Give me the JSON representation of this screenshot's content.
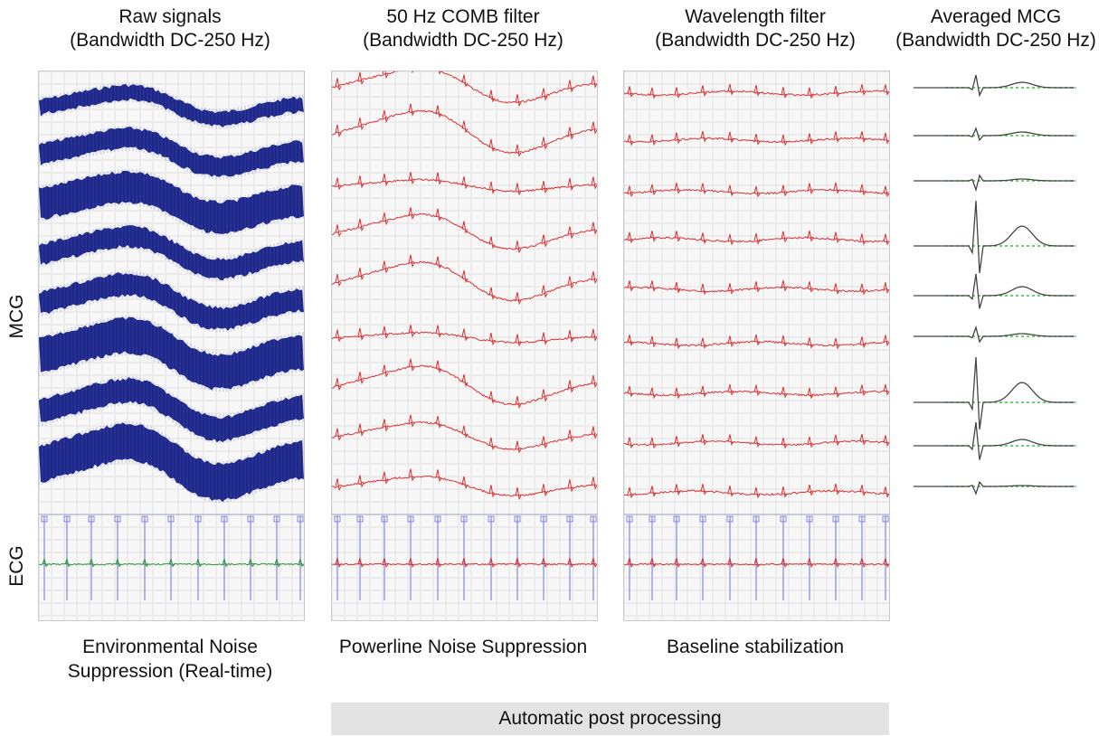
{
  "columns": [
    {
      "title_line1": "Raw signals",
      "title_line2": "(Bandwidth DC-250 Hz)",
      "caption_line1": "Environmental Noise",
      "caption_line2": "Suppression (Real-time)",
      "trace_color": "#0a1580"
    },
    {
      "title_line1": "50 Hz COMB filter",
      "title_line2": "(Bandwidth DC-250 Hz)",
      "caption_line1": "Powerline Noise Suppression",
      "caption_line2": "",
      "trace_color": "#d93030"
    },
    {
      "title_line1": "Wavelength filter",
      "title_line2": "(Bandwidth DC-250 Hz)",
      "caption_line1": "Baseline stabilization",
      "caption_line2": "",
      "trace_color": "#d93030"
    },
    {
      "title_line1": "Averaged MCG",
      "title_line2": "(Bandwidth DC-250 Hz)",
      "caption_line1": "",
      "caption_line2": "",
      "trace_color": "#444444"
    }
  ],
  "row_labels": {
    "mcg": "MCG",
    "ecg": "ECG"
  },
  "process_bar": {
    "label": "Automatic post processing"
  },
  "colors": {
    "raw_trace": "#0a1580",
    "filtered_trace": "#d93030",
    "ecg_raw": "#2e9a3a",
    "marker": "#6f6fe0",
    "avg_trace": "#444444",
    "avg_baseline": "#39c339"
  }
}
